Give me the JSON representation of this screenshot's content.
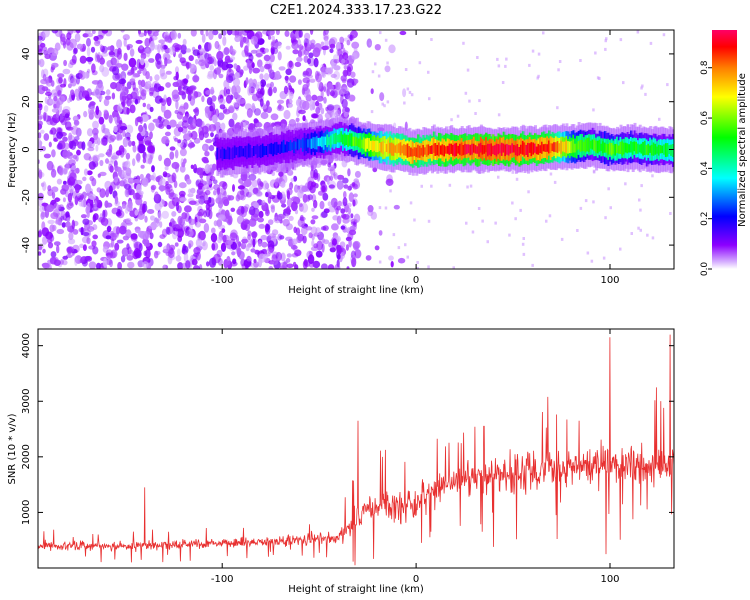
{
  "title": "C2E1.2024.333.17.23.G22",
  "chart_data": [
    {
      "type": "heatmap",
      "xlabel": "Height of straight line (km)",
      "ylabel": "Frequency (Hz)",
      "xlim": [
        -195,
        133
      ],
      "ylim": [
        -50,
        50
      ],
      "xticks": [
        -100,
        0,
        100
      ],
      "xtick_labels": [
        "-100",
        "0",
        "100"
      ],
      "yticks": [
        -40,
        -20,
        0,
        20,
        40
      ],
      "ytick_labels": [
        "-40",
        "-20",
        "0",
        "20",
        "40"
      ],
      "colorbar": {
        "label": "Normalized spectral amplitude",
        "range": [
          0,
          0.95
        ],
        "ticks": [
          0.0,
          0.2,
          0.4,
          0.6,
          0.8
        ],
        "tick_labels": [
          "0.0",
          "0.2",
          "0.4",
          "0.6",
          "0.8"
        ],
        "colors": [
          "#ffffff",
          "#8c00ff",
          "#0000ff",
          "#00ffff",
          "#00ff00",
          "#ffff00",
          "#ff8000",
          "#ff0000",
          "#ff0066"
        ]
      },
      "noise_region": {
        "x_from": -195,
        "x_to": -30,
        "amplitude": 0.1
      },
      "line_trace": {
        "x": [
          -103,
          -90,
          -75,
          -60,
          -50,
          -40,
          -30,
          -20,
          -10,
          0,
          10,
          20,
          40,
          60,
          70,
          80,
          90,
          100,
          110,
          120,
          133
        ],
        "y": [
          -2,
          -1,
          0,
          2,
          3,
          5,
          3,
          1,
          0,
          -1,
          0,
          0,
          0,
          0,
          1,
          1,
          2,
          0,
          1,
          0,
          0
        ],
        "amplitude": [
          0.12,
          0.14,
          0.15,
          0.2,
          0.3,
          0.45,
          0.55,
          0.7,
          0.8,
          0.85,
          0.85,
          0.9,
          0.92,
          0.9,
          0.85,
          0.6,
          0.5,
          0.55,
          0.5,
          0.5,
          0.45
        ]
      }
    },
    {
      "type": "line",
      "xlabel": "Height of straight line (km)",
      "ylabel": "SNR (10 * v/v)",
      "xlim": [
        -195,
        133
      ],
      "ylim": [
        0,
        4300
      ],
      "xticks": [
        -100,
        0,
        100
      ],
      "xtick_labels": [
        "-100",
        "0",
        "100"
      ],
      "yticks": [
        1000,
        2000,
        3000,
        4000
      ],
      "ytick_labels": [
        "1000",
        "2000",
        "3000",
        "4000"
      ],
      "color": "#e83030",
      "series": [
        {
          "name": "SNR",
          "trend": {
            "x": [
              -195,
              -150,
              -100,
              -60,
              -40,
              -30,
              -20,
              -10,
              0,
              10,
              20,
              40,
              60,
              80,
              100,
              120,
              133
            ],
            "y": [
              400,
              400,
              450,
              500,
              550,
              900,
              1100,
              1100,
              1150,
              1400,
              1550,
              1650,
              1750,
              1800,
              1850,
              1850,
              1900
            ]
          },
          "spread": {
            "x": [
              -195,
              -100,
              -40,
              -30,
              0,
              50,
              100,
              133
            ],
            "y": [
              150,
              170,
              200,
              500,
              600,
              650,
              700,
              700
            ]
          },
          "peaks": [
            {
              "x": -140,
              "y": 1450
            },
            {
              "x": -30,
              "y": 2650
            },
            {
              "x": 35,
              "y": 2550
            },
            {
              "x": 100,
              "y": 4150
            },
            {
              "x": 131,
              "y": 4200
            },
            {
              "x": 98,
              "y": 250
            }
          ]
        }
      ]
    }
  ]
}
